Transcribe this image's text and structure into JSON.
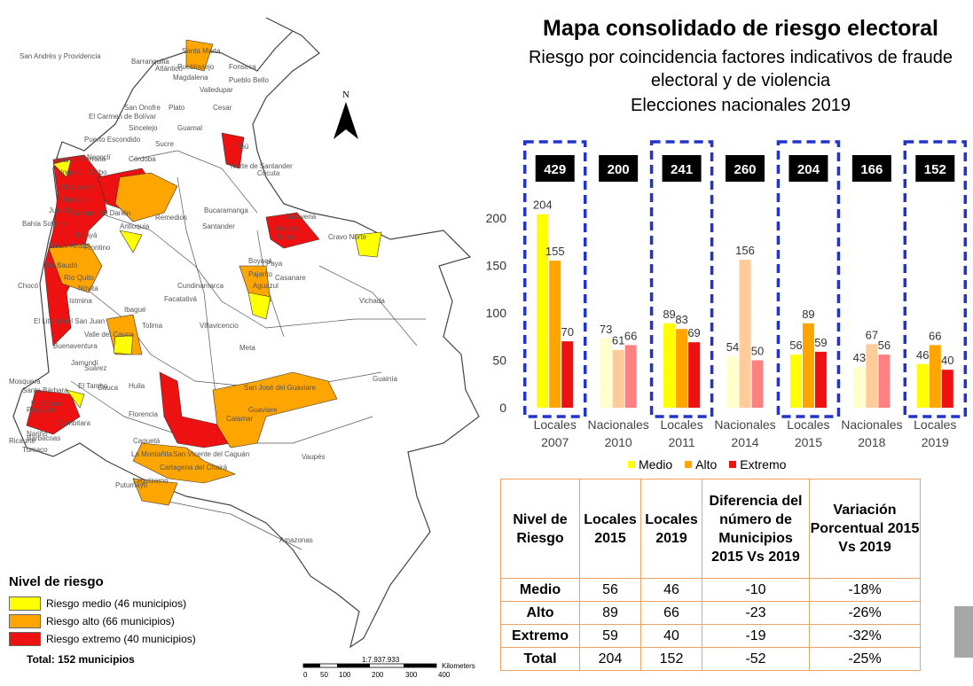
{
  "header": {
    "title": "Mapa consolidado de riesgo electoral",
    "subtitle_line1": "Riesgo por coincidencia factores indicativos de fraude",
    "subtitle_line2": "electoral y de violencia",
    "subtitle_line3": "Elecciones nacionales 2019"
  },
  "colors": {
    "medio": "#ffff00",
    "alto": "#ffa500",
    "extremo": "#ee1111",
    "dash": "#2233cc"
  },
  "map": {
    "north_label": "N",
    "legend_title": "Nivel de riesgo",
    "legend_items": [
      {
        "label": "Riesgo medio (46 municipios)",
        "color": "#ffff00"
      },
      {
        "label": "Riesgo alto (66 municipios)",
        "color": "#ffa500"
      },
      {
        "label": "Riesgo extremo (40 municipios)",
        "color": "#ee1111"
      }
    ],
    "total": "Total: 152 municipios",
    "scale_ratio": "1:7.937.933",
    "scale_unit": "Kilometers",
    "scale_ticks": [
      "0",
      "50",
      "100",
      "200",
      "300",
      "400"
    ],
    "place_labels": [
      "San Andrés y Providencia",
      "Barranquilla",
      "Santa Marta",
      "Puebloviejo",
      "Fonseca",
      "Atlántico",
      "Magdalena",
      "Pueblo Bello",
      "Valledupar",
      "El Carmen de Bolívar",
      "San Onofre",
      "Plato",
      "Cesar",
      "Sincelejo",
      "Guamal",
      "Puerto Escondido",
      "Sucre",
      "Tibú",
      "Córdoba",
      "Tierralta",
      "Norte de Santander",
      "Cúcuta",
      "Acandí",
      "Necoclí",
      "Unguía",
      "Turbo",
      "Chigorodó",
      "Riosucio",
      "Carmen del Darién",
      "Bahía Solano",
      "Juradó",
      "Medio Atrato",
      "Bojayá",
      "Frontino",
      "Antioquia",
      "Alto Baudó",
      "Río Quito",
      "Nóvita",
      "Istmina",
      "El Litoral del San Juan",
      "Buenaventura",
      "Valle del Cauca",
      "Chocó",
      "Remedios",
      "Bucaramanga",
      "Santander",
      "Saravena",
      "Arauca",
      "Tame",
      "Cravo Norte",
      "Boyacá",
      "Pajarito",
      "Paya",
      "Aguazul",
      "Casanare",
      "Cundinamarca",
      "Facatativá",
      "Ibagué",
      "Tolima",
      "Jamundí",
      "Villavicencio",
      "Meta",
      "Vichada",
      "Guainía",
      "Suárez",
      "Cauca",
      "El Tambo",
      "Popayán",
      "Mosquera",
      "Santa Bárbara",
      "El Charco",
      "Nariño",
      "Barbacoas",
      "Tumaco",
      "Ricaurte",
      "Cumbitara",
      "Huila",
      "Florencia",
      "San José del Guaviare",
      "Guaviare",
      "Calamar",
      "La Montañita",
      "San Vicente del Caguán",
      "Cartagena del Chairá",
      "Vaupés",
      "Putumayo",
      "Leguízamo",
      "Amazonas",
      "Caquetá"
    ]
  },
  "chart_data": {
    "type": "bar",
    "categories": [
      "Locales 2007",
      "Nacionales 2010",
      "Locales 2011",
      "Nacionales 2014",
      "Locales 2015",
      "Nacionales 2018",
      "Locales 2019"
    ],
    "totals": [
      429,
      200,
      241,
      260,
      204,
      166,
      152
    ],
    "highlighted": [
      true,
      false,
      true,
      false,
      true,
      false,
      true
    ],
    "series": [
      {
        "name": "Medio",
        "values": [
          204,
          73,
          89,
          54,
          56,
          43,
          46
        ]
      },
      {
        "name": "Alto",
        "values": [
          155,
          61,
          83,
          156,
          89,
          67,
          66
        ]
      },
      {
        "name": "Extremo",
        "values": [
          70,
          66,
          69,
          50,
          59,
          56,
          40
        ]
      }
    ],
    "ylim": [
      0,
      200
    ],
    "yticks": [
      0,
      50,
      100,
      150,
      200
    ],
    "legend_position": "bottom"
  },
  "table": {
    "headers": [
      "Nivel de Riesgo",
      "Locales 2015",
      "Locales 2019",
      "Diferencia del número de Municipios 2015 Vs 2019",
      "Variación Porcentual 2015 Vs 2019"
    ],
    "rows": [
      [
        "Medio",
        "56",
        "46",
        "-10",
        "-18%"
      ],
      [
        "Alto",
        "89",
        "66",
        "-23",
        "-26%"
      ],
      [
        "Extremo",
        "59",
        "40",
        "-19",
        "-32%"
      ],
      [
        "Total",
        "204",
        "152",
        "-52",
        "-25%"
      ]
    ]
  }
}
